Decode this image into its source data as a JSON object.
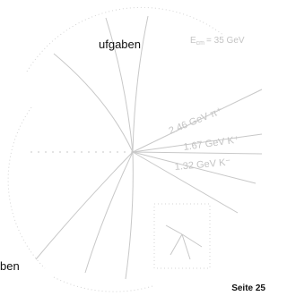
{
  "page": {
    "body_fragments": [
      "ufgaben",
      "ben"
    ],
    "footer": "Seite 25"
  },
  "figure": {
    "energy_label": "E",
    "energy_subscript": "cm",
    "energy_value": "= 35 GeV",
    "tracks": [
      {
        "label": "2.46 GeV π⁺"
      },
      {
        "label": "1.67 GeV K⁺"
      },
      {
        "label": "1.32 GeV K⁻"
      }
    ]
  }
}
